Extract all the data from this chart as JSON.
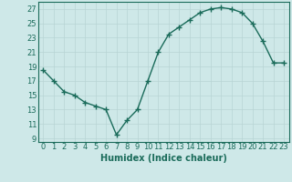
{
  "x": [
    0,
    1,
    2,
    3,
    4,
    5,
    6,
    7,
    8,
    9,
    10,
    11,
    12,
    13,
    14,
    15,
    16,
    17,
    18,
    19,
    20,
    21,
    22,
    23
  ],
  "y": [
    18.5,
    17.0,
    15.5,
    15.0,
    14.0,
    13.5,
    13.0,
    9.5,
    11.5,
    13.0,
    17.0,
    21.0,
    23.5,
    24.5,
    25.5,
    26.5,
    27.0,
    27.2,
    27.0,
    26.5,
    25.0,
    22.5,
    19.5,
    19.5
  ],
  "line_color": "#1a6b5a",
  "marker_color": "#1a6b5a",
  "bg_color": "#cee8e8",
  "grid_color": "#b8d4d4",
  "xlabel": "Humidex (Indice chaleur)",
  "xlim": [
    -0.5,
    23.5
  ],
  "ylim": [
    8.5,
    28.0
  ],
  "yticks": [
    9,
    11,
    13,
    15,
    17,
    19,
    21,
    23,
    25,
    27
  ],
  "xticks": [
    0,
    1,
    2,
    3,
    4,
    5,
    6,
    7,
    8,
    9,
    10,
    11,
    12,
    13,
    14,
    15,
    16,
    17,
    18,
    19,
    20,
    21,
    22,
    23
  ],
  "xtick_labels": [
    "0",
    "1",
    "2",
    "3",
    "4",
    "5",
    "6",
    "7",
    "8",
    "9",
    "10",
    "11",
    "12",
    "13",
    "14",
    "15",
    "16",
    "17",
    "18",
    "19",
    "20",
    "21",
    "22",
    "23"
  ],
  "xlabel_fontsize": 7,
  "tick_fontsize": 6,
  "line_width": 1.0,
  "marker_size": 2.5
}
